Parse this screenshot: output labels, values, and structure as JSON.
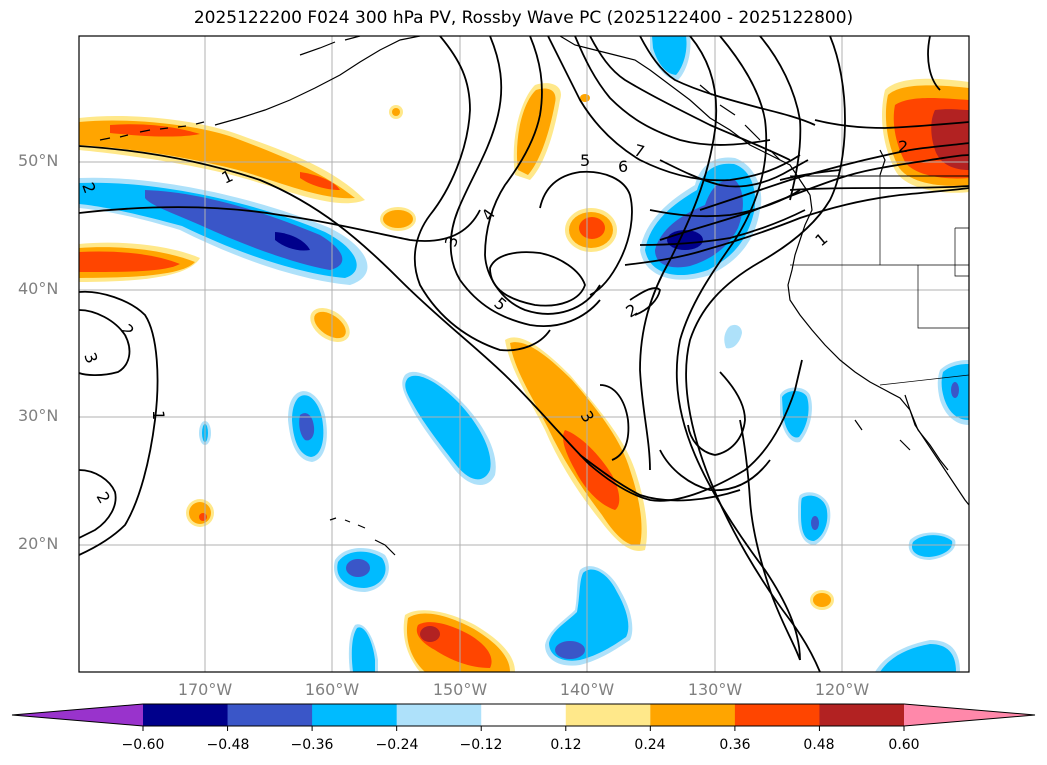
{
  "title": "2025122200 F024 300 hPa PV, Rossby Wave PC (2025122400 - 2025122800)",
  "lat_labels": [
    "50°N",
    "40°N",
    "30°N",
    "20°N"
  ],
  "lon_labels": [
    "170°W",
    "160°W",
    "150°W",
    "140°W",
    "130°W",
    "120°W"
  ],
  "colorbar": {
    "ticks": [
      "−0.60",
      "−0.48",
      "−0.36",
      "−0.24",
      "−0.12",
      "0.12",
      "0.24",
      "0.36",
      "0.48",
      "0.60"
    ],
    "colors": [
      "#9933cc",
      "#00008b",
      "#3a56c8",
      "#00bbff",
      "#aee1fa",
      "#ffffff",
      "#ffe88a",
      "#ffa500",
      "#ff4500",
      "#b22222",
      "#ff88aa"
    ]
  },
  "contour_labels": {
    "c1a": "1",
    "c1b": "1",
    "c1c": "1",
    "c2a": "2",
    "c2b": "2",
    "c2c": "2",
    "c2d": "2",
    "c2e": "2",
    "c3a": "3",
    "c3b": "3",
    "c3c": "3",
    "c4a": "4",
    "c5a": "5",
    "c5b": "5",
    "c6a": "6",
    "c7a": "7"
  },
  "colors": {
    "gridline": "#b0b0b0",
    "coastline": "#000000"
  }
}
